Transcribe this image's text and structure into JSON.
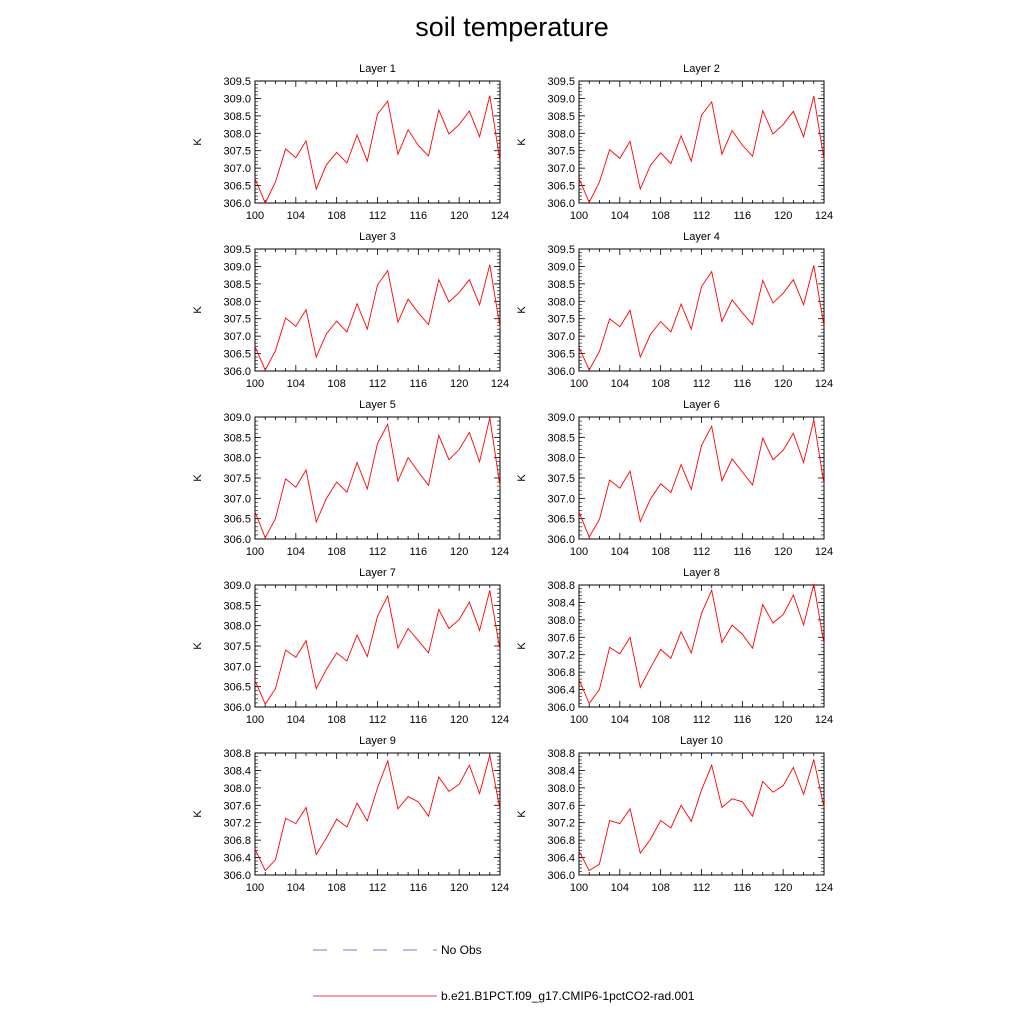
{
  "title": "soil temperature",
  "chart_data": {
    "type": "line",
    "title": "soil temperature",
    "ylabel": "K",
    "x": [
      100,
      101,
      102,
      103,
      104,
      105,
      106,
      107,
      108,
      109,
      110,
      111,
      112,
      113,
      114,
      115,
      116,
      117,
      118,
      119,
      120,
      121,
      122,
      123,
      124
    ],
    "xticks": [
      "100",
      "104",
      "108",
      "112",
      "116",
      "120",
      "124"
    ],
    "xlim": [
      100,
      124
    ],
    "grid": false,
    "legend_placement": "bottom",
    "panels": [
      {
        "title": "Layer 1",
        "ylim": [
          306.0,
          309.5
        ],
        "yticks": [
          "306.0",
          "306.5",
          "307.0",
          "307.5",
          "308.0",
          "308.5",
          "309.0",
          "309.5"
        ],
        "series": [
          {
            "name": "b.e21.B1PCT.f09_g17.CMIP6-1pctCO2-rad.001",
            "color": "#ff0000",
            "values": [
              306.7,
              306.0,
              306.6,
              307.55,
              307.3,
              307.78,
              306.4,
              307.1,
              307.45,
              307.15,
              307.95,
              307.2,
              308.55,
              308.92,
              307.4,
              308.1,
              307.65,
              307.35,
              308.67,
              307.98,
              308.25,
              308.64,
              307.9,
              309.08,
              307.2
            ]
          }
        ]
      },
      {
        "title": "Layer 2",
        "ylim": [
          306.0,
          309.5
        ],
        "yticks": [
          "306.0",
          "306.5",
          "307.0",
          "307.5",
          "308.0",
          "308.5",
          "309.0",
          "309.5"
        ],
        "series": [
          {
            "name": "b.e21.B1PCT.f09_g17.CMIP6-1pctCO2-rad.001",
            "color": "#ff0000",
            "values": [
              306.7,
              306.02,
              306.6,
              307.53,
              307.28,
              307.77,
              306.4,
              307.08,
              307.44,
              307.13,
              307.93,
              307.2,
              308.52,
              308.9,
              307.4,
              308.08,
              307.66,
              307.34,
              308.65,
              307.98,
              308.25,
              308.63,
              307.9,
              309.07,
              307.25
            ]
          }
        ]
      },
      {
        "title": "Layer 3",
        "ylim": [
          306.0,
          309.5
        ],
        "yticks": [
          "306.0",
          "306.5",
          "307.0",
          "307.5",
          "308.0",
          "308.5",
          "309.0",
          "309.5"
        ],
        "series": [
          {
            "name": "b.e21.B1PCT.f09_g17.CMIP6-1pctCO2-rad.001",
            "color": "#ff0000",
            "values": [
              306.7,
              306.03,
              306.58,
              307.52,
              307.28,
              307.76,
              306.4,
              307.07,
              307.43,
              307.12,
              307.93,
              307.2,
              308.47,
              308.88,
              307.4,
              308.06,
              307.67,
              307.33,
              308.62,
              307.98,
              308.25,
              308.62,
              307.9,
              309.05,
              307.25
            ]
          }
        ]
      },
      {
        "title": "Layer 4",
        "ylim": [
          306.0,
          309.5
        ],
        "yticks": [
          "306.0",
          "306.5",
          "307.0",
          "307.5",
          "308.0",
          "308.5",
          "309.0",
          "309.5"
        ],
        "series": [
          {
            "name": "b.e21.B1PCT.f09_g17.CMIP6-1pctCO2-rad.001",
            "color": "#ff0000",
            "values": [
              306.68,
              306.03,
              306.56,
              307.5,
              307.27,
              307.74,
              306.4,
              307.05,
              307.42,
              307.12,
              307.92,
              307.2,
              308.42,
              308.85,
              307.42,
              308.04,
              307.67,
              307.33,
              308.6,
              307.95,
              308.23,
              308.62,
              307.9,
              309.03,
              307.28
            ]
          }
        ]
      },
      {
        "title": "Layer 5",
        "ylim": [
          306.0,
          309.0
        ],
        "yticks": [
          "306.0",
          "306.5",
          "307.0",
          "307.5",
          "308.0",
          "308.5",
          "309.0"
        ],
        "series": [
          {
            "name": "b.e21.B1PCT.f09_g17.CMIP6-1pctCO2-rad.001",
            "color": "#ff0000",
            "values": [
              306.67,
              306.03,
              306.5,
              307.48,
              307.27,
              307.7,
              306.42,
              307.0,
              307.4,
              307.15,
              307.88,
              307.23,
              308.35,
              308.82,
              307.42,
              308.0,
              307.65,
              307.32,
              308.55,
              307.95,
              308.2,
              308.62,
              307.9,
              308.98,
              307.3
            ]
          }
        ]
      },
      {
        "title": "Layer 6",
        "ylim": [
          306.0,
          309.0
        ],
        "yticks": [
          "306.0",
          "306.5",
          "307.0",
          "307.5",
          "308.0",
          "308.5",
          "309.0"
        ],
        "series": [
          {
            "name": "b.e21.B1PCT.f09_g17.CMIP6-1pctCO2-rad.001",
            "color": "#ff0000",
            "values": [
              306.66,
              306.05,
              306.48,
              307.45,
              307.25,
              307.67,
              306.43,
              306.98,
              307.36,
              307.14,
              307.83,
              307.22,
              308.3,
              308.77,
              307.43,
              307.97,
              307.65,
              307.33,
              308.48,
              307.95,
              308.18,
              308.6,
              307.88,
              308.93,
              307.35
            ]
          }
        ]
      },
      {
        "title": "Layer 7",
        "ylim": [
          306.0,
          309.0
        ],
        "yticks": [
          "306.0",
          "306.5",
          "307.0",
          "307.5",
          "308.0",
          "308.5",
          "309.0"
        ],
        "series": [
          {
            "name": "b.e21.B1PCT.f09_g17.CMIP6-1pctCO2-rad.001",
            "color": "#ff0000",
            "values": [
              306.65,
              306.07,
              306.45,
              307.4,
              307.22,
              307.63,
              306.45,
              306.93,
              307.33,
              307.13,
              307.77,
              307.24,
              308.23,
              308.73,
              307.45,
              307.93,
              307.63,
              307.33,
              308.4,
              307.93,
              308.15,
              308.58,
              307.88,
              308.87,
              307.4
            ]
          }
        ]
      },
      {
        "title": "Layer 8",
        "ylim": [
          306.0,
          308.8
        ],
        "yticks": [
          "306.0",
          "306.4",
          "306.8",
          "307.2",
          "307.6",
          "308.0",
          "308.4",
          "308.8"
        ],
        "series": [
          {
            "name": "b.e21.B1PCT.f09_g17.CMIP6-1pctCO2-rad.001",
            "color": "#ff0000",
            "values": [
              306.63,
              306.08,
              306.4,
              307.37,
              307.22,
              307.6,
              306.45,
              306.9,
              307.32,
              307.12,
              307.73,
              307.24,
              308.15,
              308.68,
              307.48,
              307.88,
              307.67,
              307.35,
              308.35,
              307.93,
              308.12,
              308.57,
              307.88,
              308.82,
              307.45
            ]
          }
        ]
      },
      {
        "title": "Layer 9",
        "ylim": [
          306.0,
          308.8
        ],
        "yticks": [
          "306.0",
          "306.4",
          "306.8",
          "307.2",
          "307.6",
          "308.0",
          "308.4",
          "308.8"
        ],
        "series": [
          {
            "name": "b.e21.B1PCT.f09_g17.CMIP6-1pctCO2-rad.001",
            "color": "#ff0000",
            "values": [
              306.6,
              306.1,
              306.35,
              307.3,
              307.18,
              307.55,
              306.47,
              306.85,
              307.28,
              307.1,
              307.65,
              307.24,
              308.0,
              308.62,
              307.52,
              307.8,
              307.68,
              307.35,
              308.25,
              307.92,
              308.08,
              308.52,
              307.87,
              308.75,
              307.5
            ]
          }
        ]
      },
      {
        "title": "Layer 10",
        "ylim": [
          306.0,
          308.8
        ],
        "yticks": [
          "306.0",
          "306.4",
          "306.8",
          "307.2",
          "307.6",
          "308.0",
          "308.4",
          "308.8"
        ],
        "series": [
          {
            "name": "b.e21.B1PCT.f09_g17.CMIP6-1pctCO2-rad.001",
            "color": "#ff0000",
            "values": [
              306.55,
              306.1,
              306.25,
              307.25,
              307.18,
              307.52,
              306.5,
              306.82,
              307.25,
              307.08,
              307.6,
              307.23,
              307.95,
              308.52,
              307.55,
              307.75,
              307.68,
              307.35,
              308.15,
              307.9,
              308.05,
              308.47,
              307.85,
              308.65,
              307.55
            ]
          }
        ]
      }
    ],
    "legend": [
      {
        "label": "No Obs",
        "color": "#7a7acc",
        "style": "dashed"
      },
      {
        "label": "b.e21.B1PCT.f09_g17.CMIP6-1pctCO2-rad.001",
        "color": "#ff0000",
        "style": "solid"
      }
    ]
  }
}
